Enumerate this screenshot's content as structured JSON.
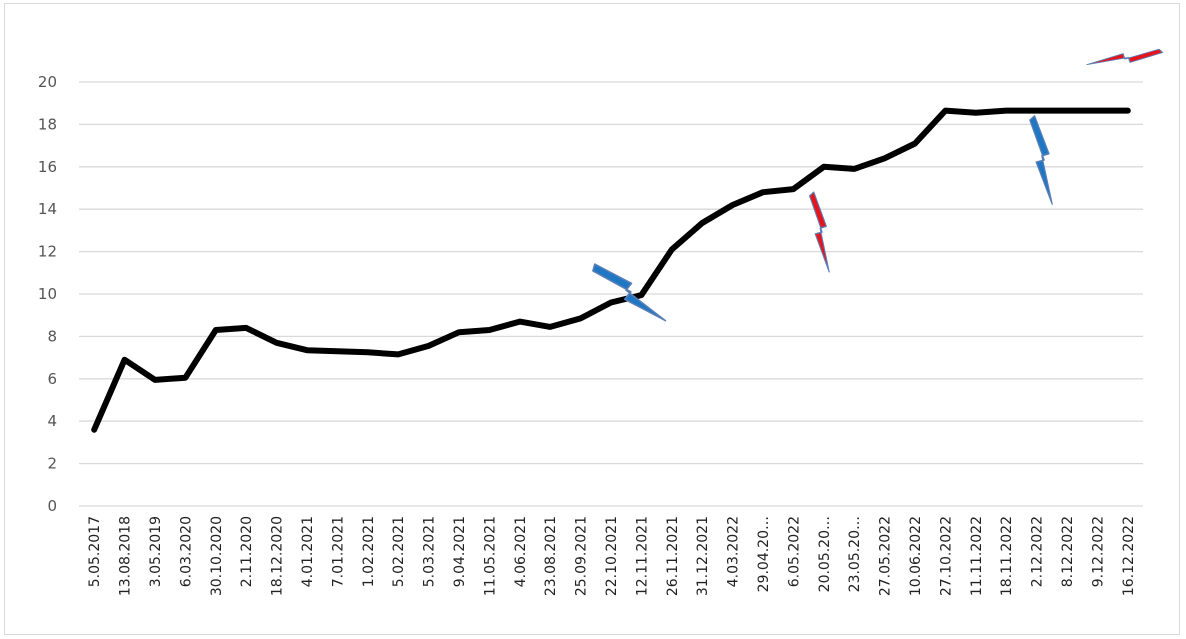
{
  "chart_data": {
    "type": "line",
    "title": "",
    "xlabel": "",
    "ylabel": "",
    "ylim": [
      0,
      20
    ],
    "yticks": [
      "0",
      "2",
      "4",
      "6",
      "8",
      "10",
      "12",
      "14",
      "16",
      "18",
      "20"
    ],
    "grid": true,
    "legend": "none",
    "categories": [
      "5.05.2017",
      "13.08.2018",
      "3.05.2019",
      "6.03.2020",
      "30.10.2020",
      "2.11.2020",
      "18.12.2020",
      "4.01.2021",
      "7.01.2021",
      "1.02.2021",
      "5.02.2021",
      "5.03.2021",
      "9.04.2021",
      "11.05.2021",
      "4.06.2021",
      "23.08.2021",
      "25.09.2021",
      "22.10.2021",
      "12.11.2021",
      "26.11.2021",
      "31.12.2021",
      "4.03.2022",
      "29.04.20…",
      "6.05.2022",
      "20.05.20…",
      "23.05.20…",
      "27.05.2022",
      "10.06.2022",
      "27.10.2022",
      "11.11.2022",
      "18.11.2022",
      "2.12.2022",
      "8.12.2022",
      "9.12.2022",
      "16.12.2022"
    ],
    "series": [
      {
        "values": [
          3.6,
          6.9,
          5.95,
          6.05,
          8.3,
          8.4,
          7.7,
          7.35,
          7.3,
          7.25,
          7.15,
          7.55,
          8.2,
          8.3,
          8.7,
          8.45,
          8.85,
          9.6,
          9.95,
          12.1,
          13.35,
          14.2,
          14.8,
          14.95,
          16.0,
          15.9,
          16.4,
          17.1,
          18.65,
          18.55,
          18.65,
          18.65,
          18.65,
          18.65,
          18.65
        ]
      }
    ],
    "line_color": "#000000",
    "markers": [
      {
        "icon": "lightning-bolt-icon",
        "color": "#e8141b",
        "near": "16.12.2022",
        "orientation": "horizontal"
      },
      {
        "icon": "lightning-bolt-icon",
        "color": "#e8141b",
        "near": "20.05.20…",
        "orientation": "vertical"
      },
      {
        "icon": "lightning-bolt-icon",
        "color": "#1f77c4",
        "near": "12.11.2021",
        "orientation": "diagonal"
      },
      {
        "icon": "lightning-bolt-icon",
        "color": "#1f77c4",
        "near": "2.12.2022",
        "orientation": "vertical"
      }
    ]
  }
}
